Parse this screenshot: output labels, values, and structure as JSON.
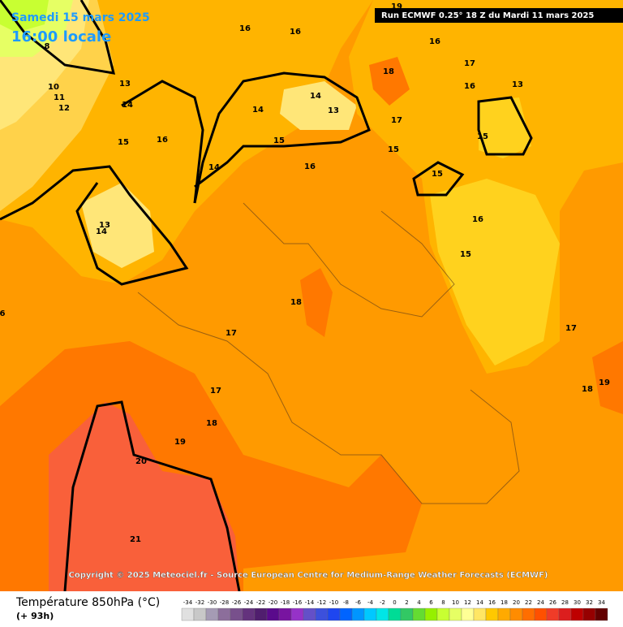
{
  "header": {
    "date": "Samedi 15 mars 2025",
    "time": "16:00 locale",
    "run": "Run ECMWF 0.25° 18 Z du Mardi 11 mars 2025"
  },
  "map": {
    "contour_labels": [
      19,
      16,
      16,
      16,
      17,
      16,
      13,
      18,
      17,
      15,
      15,
      15,
      16,
      15,
      14,
      14,
      13,
      16,
      14,
      15,
      14,
      13,
      10,
      11,
      12,
      8,
      13,
      14,
      16,
      15,
      18,
      17,
      17,
      17,
      18,
      19,
      20,
      21,
      18,
      19,
      6
    ]
  },
  "copyright": "Copyright © 2025 Meteociel.fr - Source European Centre for Medium-Range Weather Forecasts (ECMWF)",
  "legend": {
    "title": "Température 850hPa (°C)",
    "lead": "(+ 93h)",
    "values": [
      -34,
      -32,
      -30,
      -28,
      -26,
      -24,
      -22,
      -20,
      -18,
      -16,
      -14,
      -12,
      -10,
      -8,
      -6,
      -4,
      -2,
      0,
      2,
      4,
      6,
      8,
      10,
      12,
      14,
      16,
      18,
      20,
      22,
      24,
      26,
      28,
      30,
      32,
      34
    ],
    "colors": [
      "#e0e0e0",
      "#c8c8c8",
      "#a59bb4",
      "#8c6e9b",
      "#78508c",
      "#64327d",
      "#501e6e",
      "#5a0a8c",
      "#7814a0",
      "#9632c8",
      "#6450c8",
      "#3c50dc",
      "#1e46f0",
      "#0064ff",
      "#0096ff",
      "#00c8ff",
      "#00e6e6",
      "#00dc96",
      "#32c864",
      "#64dc32",
      "#96f000",
      "#c8ff32",
      "#e6ff64",
      "#ffff96",
      "#ffe664",
      "#ffc800",
      "#ffaa00",
      "#ff8c00",
      "#ff6e00",
      "#ff5000",
      "#f03c28",
      "#dc1e1e",
      "#be0000",
      "#960000",
      "#640000"
    ]
  }
}
